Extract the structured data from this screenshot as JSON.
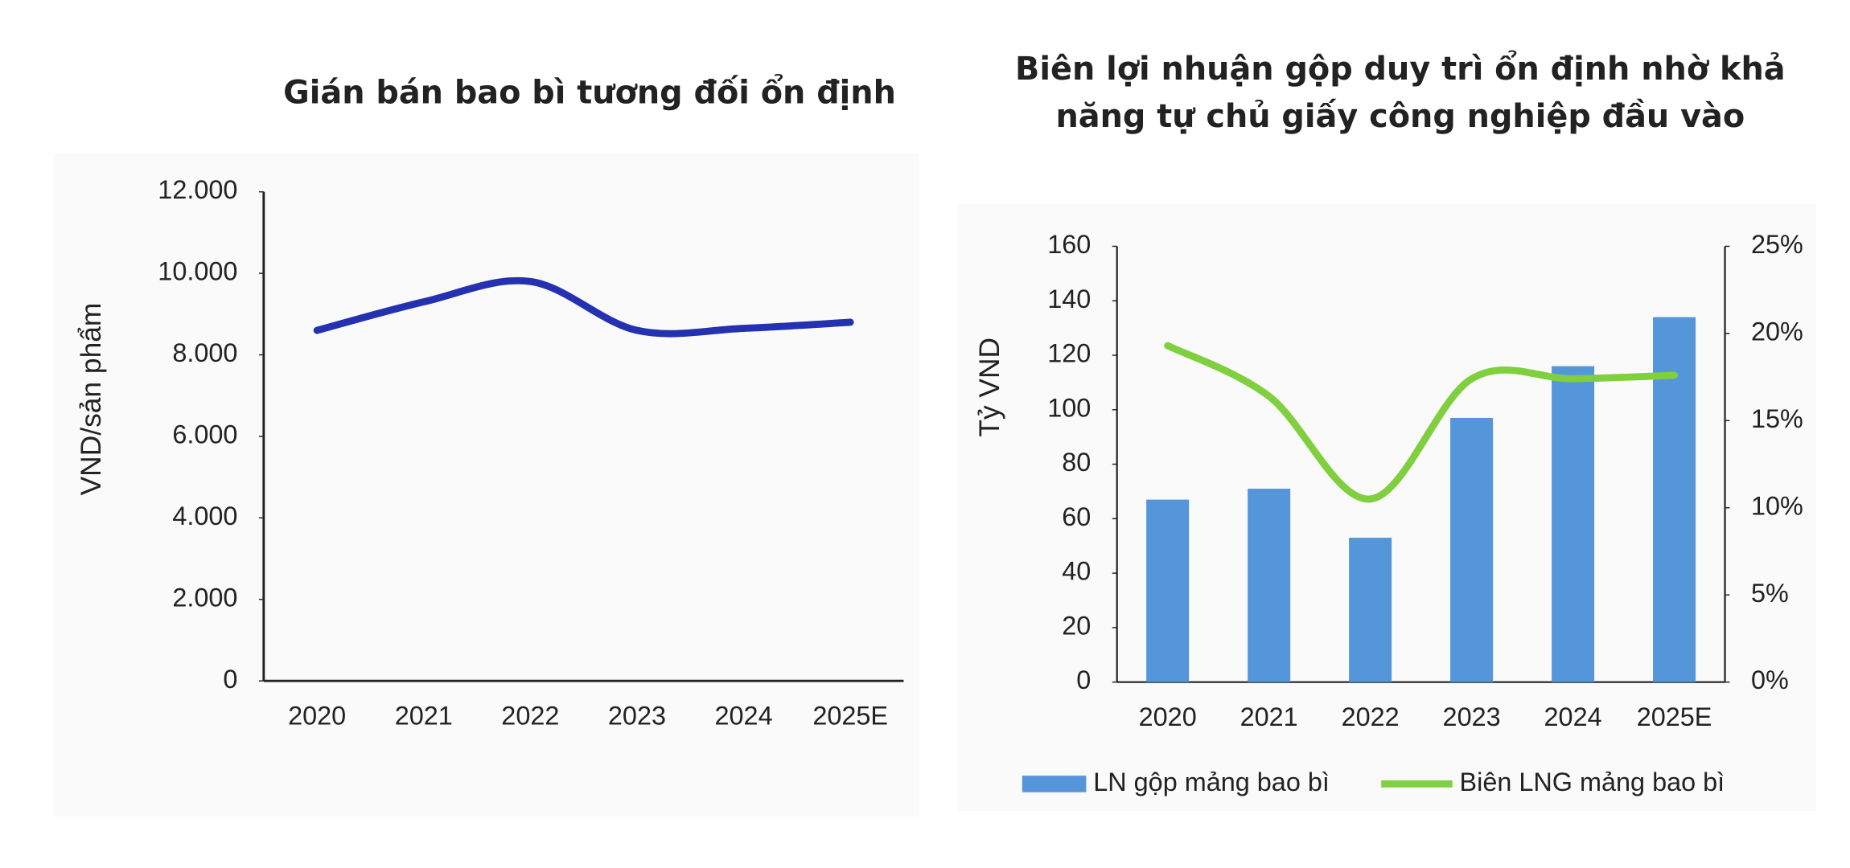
{
  "chart_data": [
    {
      "type": "line",
      "title": "Gián bán bao bì tương đối ổn định",
      "ylabel": "VND/sản phẩm",
      "categories": [
        "2020",
        "2021",
        "2022",
        "2023",
        "2024",
        "2025E"
      ],
      "values": [
        8600,
        9300,
        9800,
        8600,
        8650,
        8800
      ],
      "color": "#2431b0",
      "ylim": [
        0,
        12000
      ],
      "yticks": [
        0,
        {
          "value": 2000,
          "label": "2.000"
        },
        {
          "value": 4000,
          "label": "4.000"
        },
        {
          "value": 6000,
          "label": "6.000"
        },
        {
          "value": 8000,
          "label": "8.000"
        },
        {
          "value": 10000,
          "label": "10.000"
        },
        {
          "value": 12000,
          "label": "12.000"
        }
      ]
    },
    {
      "type": "bar-line",
      "title": [
        "Biên lợi nhuận gộp duy trì ổn định nhờ khả",
        "năng tự chủ giấy công nghiệp đầu vào"
      ],
      "ylabel": "Tỷ VND",
      "categories": [
        "2020",
        "2021",
        "2022",
        "2023",
        "2024",
        "2025E"
      ],
      "series": [
        {
          "name": "LN gộp mảng bao bì",
          "color": "#5596db",
          "values": [
            67,
            71,
            53,
            97,
            116,
            134
          ]
        },
        {
          "name": "Biên LNG mảng bao bì",
          "color": "#7fcf3e",
          "axis": "y2",
          "values": [
            19.3,
            16.4,
            10.5,
            17.4,
            17.4,
            17.6
          ]
        }
      ],
      "ylim": [
        0,
        160
      ],
      "yticks": [
        0,
        20,
        40,
        60,
        80,
        100,
        120,
        140,
        160
      ],
      "y2lim": [
        0,
        25
      ],
      "y2ticks": [
        {
          "value": 0,
          "label": "0%"
        },
        {
          "value": 5,
          "label": "5%"
        },
        {
          "value": 10,
          "label": "10%"
        },
        {
          "value": 15,
          "label": "15%"
        },
        {
          "value": 20,
          "label": "20%"
        },
        {
          "value": 25,
          "label": "25%"
        }
      ],
      "legend": "bottom"
    }
  ]
}
